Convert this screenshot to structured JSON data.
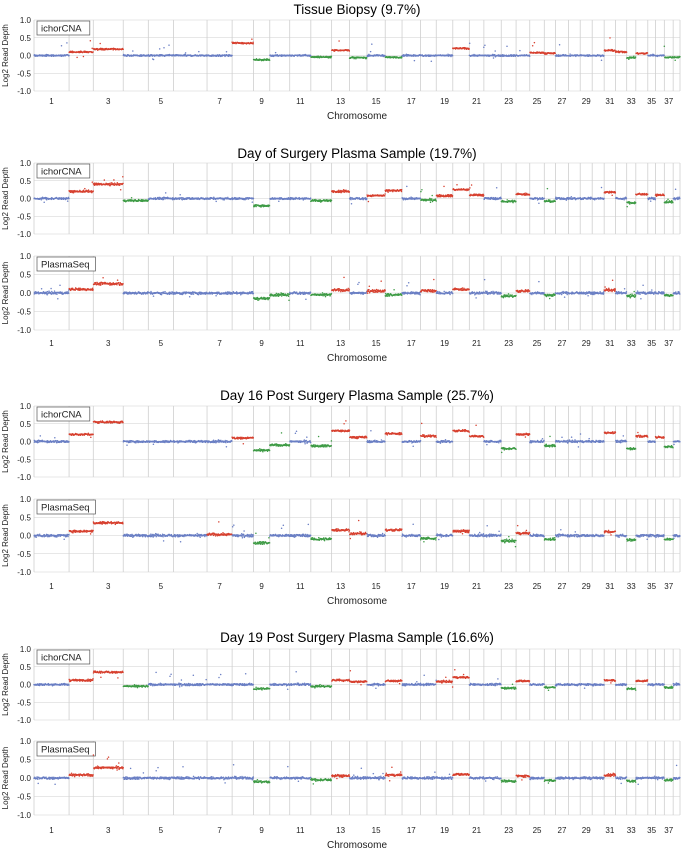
{
  "chart_data": {
    "type": "scatter",
    "colors": {
      "neutral": "#6a7fc4",
      "gain": "#d7402f",
      "loss": "#3e9b45",
      "grid": "#cfcfcf"
    },
    "ylabel": "Log2 Read Depth",
    "yticks": [
      "1.0",
      "0.5",
      "0.0",
      "-0.5",
      "-1.0"
    ],
    "ylim": [
      -1.0,
      1.0
    ],
    "xlabel": "Chromosome",
    "xticks": [
      "1",
      "3",
      "5",
      "7",
      "9",
      "11",
      "13",
      "15",
      "17",
      "19",
      "21",
      "23",
      "25",
      "27",
      "29",
      "31",
      "33",
      "35",
      "37"
    ],
    "chromosome_sizes": [
      123,
      85,
      105,
      88,
      88,
      118,
      88,
      75,
      57,
      70,
      74,
      73,
      63,
      61,
      64,
      59,
      65,
      55,
      58,
      58,
      51,
      61,
      52,
      48,
      51,
      39,
      46,
      41,
      42,
      42,
      40,
      39,
      32,
      42,
      27,
      31,
      31,
      24
    ],
    "sections": [
      {
        "title": "Tissue Biopsy (9.7%)",
        "show_xlabel": true,
        "panels": [
          {
            "label": "ichorCNA",
            "noise": 0.022,
            "gains": [
              [
                2,
                0.1
              ],
              [
                3,
                0.18
              ],
              [
                8,
                0.35
              ],
              [
                13,
                0.15
              ],
              [
                20,
                0.2
              ],
              [
                25,
                0.08
              ],
              [
                26,
                0.06
              ],
              [
                31,
                0.14
              ],
              [
                32,
                0.1
              ],
              [
                34,
                0.06
              ]
            ],
            "losses": [
              [
                2,
                -0.1
              ],
              [
                3,
                -0.05
              ],
              [
                9,
                -0.12
              ],
              [
                12,
                -0.04
              ],
              [
                14,
                -0.06
              ],
              [
                16,
                -0.05
              ],
              [
                26,
                -0.06
              ],
              [
                33,
                -0.06
              ],
              [
                37,
                -0.05
              ],
              [
                38,
                -0.05
              ]
            ]
          }
        ]
      },
      {
        "title": "Day of Surgery Plasma Sample (19.7%)",
        "show_xlabel": true,
        "panels": [
          {
            "label": "ichorCNA",
            "noise": 0.03,
            "gains": [
              [
                2,
                0.2
              ],
              [
                3,
                0.4
              ],
              [
                13,
                0.2
              ],
              [
                15,
                0.08
              ],
              [
                16,
                0.22
              ],
              [
                19,
                0.08
              ],
              [
                20,
                0.25
              ],
              [
                21,
                0.1
              ],
              [
                24,
                0.12
              ],
              [
                31,
                0.18
              ],
              [
                34,
                0.12
              ],
              [
                36,
                0.1
              ]
            ],
            "losses": [
              [
                2,
                -0.1
              ],
              [
                4,
                -0.06
              ],
              [
                9,
                -0.2
              ],
              [
                12,
                -0.06
              ],
              [
                16,
                -0.08
              ],
              [
                18,
                -0.04
              ],
              [
                23,
                -0.08
              ],
              [
                26,
                -0.08
              ],
              [
                33,
                -0.12
              ],
              [
                37,
                -0.1
              ]
            ]
          },
          {
            "label": "PlasmaSeq",
            "noise": 0.035,
            "gains": [
              [
                2,
                0.1
              ],
              [
                3,
                0.25
              ],
              [
                13,
                0.08
              ],
              [
                15,
                0.06
              ],
              [
                18,
                0.06
              ],
              [
                20,
                0.1
              ],
              [
                24,
                0.05
              ],
              [
                31,
                0.08
              ]
            ],
            "losses": [
              [
                2,
                -0.05
              ],
              [
                9,
                -0.15
              ],
              [
                10,
                -0.05
              ],
              [
                12,
                -0.05
              ],
              [
                16,
                -0.05
              ],
              [
                23,
                -0.08
              ],
              [
                26,
                -0.06
              ],
              [
                33,
                -0.08
              ],
              [
                37,
                -0.06
              ]
            ]
          }
        ]
      },
      {
        "title": "Day 16 Post Surgery Plasma Sample (25.7%)",
        "show_xlabel": true,
        "panels": [
          {
            "label": "ichorCNA",
            "noise": 0.03,
            "gains": [
              [
                2,
                0.2
              ],
              [
                3,
                0.55
              ],
              [
                8,
                0.1
              ],
              [
                13,
                0.3
              ],
              [
                14,
                0.12
              ],
              [
                16,
                0.22
              ],
              [
                18,
                0.15
              ],
              [
                20,
                0.3
              ],
              [
                21,
                0.15
              ],
              [
                24,
                0.2
              ],
              [
                31,
                0.25
              ],
              [
                34,
                0.15
              ],
              [
                36,
                0.12
              ]
            ],
            "losses": [
              [
                2,
                -0.3
              ],
              [
                3,
                -0.2
              ],
              [
                9,
                -0.25
              ],
              [
                10,
                -0.1
              ],
              [
                12,
                -0.12
              ],
              [
                16,
                -0.15
              ],
              [
                18,
                -0.1
              ],
              [
                23,
                -0.2
              ],
              [
                26,
                -0.12
              ],
              [
                33,
                -0.2
              ],
              [
                37,
                -0.15
              ]
            ]
          },
          {
            "label": "PlasmaSeq",
            "noise": 0.035,
            "gains": [
              [
                2,
                0.12
              ],
              [
                3,
                0.35
              ],
              [
                7,
                0.03
              ],
              [
                13,
                0.15
              ],
              [
                14,
                0.05
              ],
              [
                16,
                0.15
              ],
              [
                20,
                0.12
              ],
              [
                24,
                0.06
              ],
              [
                31,
                0.1
              ]
            ],
            "losses": [
              [
                2,
                -0.15
              ],
              [
                3,
                -0.1
              ],
              [
                9,
                -0.2
              ],
              [
                12,
                -0.1
              ],
              [
                16,
                -0.1
              ],
              [
                18,
                -0.08
              ],
              [
                23,
                -0.15
              ],
              [
                26,
                -0.1
              ],
              [
                33,
                -0.12
              ],
              [
                37,
                -0.1
              ]
            ]
          }
        ]
      },
      {
        "title": "Day 19 Post Surgery Plasma Sample (16.6%)",
        "show_xlabel": true,
        "panels": [
          {
            "label": "ichorCNA",
            "noise": 0.028,
            "gains": [
              [
                2,
                0.12
              ],
              [
                3,
                0.35
              ],
              [
                13,
                0.12
              ],
              [
                14,
                0.08
              ],
              [
                16,
                0.1
              ],
              [
                19,
                0.08
              ],
              [
                20,
                0.2
              ],
              [
                24,
                0.1
              ],
              [
                31,
                0.12
              ],
              [
                34,
                0.1
              ]
            ],
            "losses": [
              [
                2,
                -0.1
              ],
              [
                4,
                -0.05
              ],
              [
                9,
                -0.12
              ],
              [
                12,
                -0.05
              ],
              [
                16,
                -0.08
              ],
              [
                23,
                -0.1
              ],
              [
                26,
                -0.08
              ],
              [
                33,
                -0.12
              ],
              [
                37,
                -0.08
              ]
            ]
          },
          {
            "label": "PlasmaSeq",
            "noise": 0.032,
            "gains": [
              [
                2,
                0.08
              ],
              [
                3,
                0.28
              ],
              [
                13,
                0.06
              ],
              [
                16,
                0.08
              ],
              [
                20,
                0.1
              ],
              [
                24,
                0.05
              ],
              [
                31,
                0.08
              ]
            ],
            "losses": [
              [
                2,
                -0.06
              ],
              [
                9,
                -0.1
              ],
              [
                12,
                -0.05
              ],
              [
                16,
                -0.06
              ],
              [
                23,
                -0.08
              ],
              [
                26,
                -0.06
              ],
              [
                33,
                -0.08
              ],
              [
                37,
                -0.06
              ]
            ]
          }
        ]
      }
    ]
  }
}
